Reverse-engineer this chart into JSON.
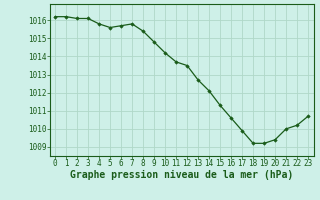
{
  "x": [
    0,
    1,
    2,
    3,
    4,
    5,
    6,
    7,
    8,
    9,
    10,
    11,
    12,
    13,
    14,
    15,
    16,
    17,
    18,
    19,
    20,
    21,
    22,
    23
  ],
  "y": [
    1016.2,
    1016.2,
    1016.1,
    1016.1,
    1015.8,
    1015.6,
    1015.7,
    1015.8,
    1015.4,
    1014.8,
    1014.2,
    1013.7,
    1013.5,
    1012.7,
    1012.1,
    1011.3,
    1010.6,
    1009.9,
    1009.2,
    1009.2,
    1009.4,
    1010.0,
    1010.2,
    1010.7
  ],
  "ylim": [
    1008.5,
    1016.9
  ],
  "yticks": [
    1009,
    1010,
    1011,
    1012,
    1013,
    1014,
    1015,
    1016
  ],
  "xticks": [
    0,
    1,
    2,
    3,
    4,
    5,
    6,
    7,
    8,
    9,
    10,
    11,
    12,
    13,
    14,
    15,
    16,
    17,
    18,
    19,
    20,
    21,
    22,
    23
  ],
  "xlabel": "Graphe pression niveau de la mer (hPa)",
  "line_color": "#1a5c1a",
  "marker_color": "#1a5c1a",
  "bg_color": "#cef0e8",
  "grid_color": "#b0d8c8",
  "text_color": "#1a5c1a",
  "tick_label_fontsize": 5.5,
  "xlabel_fontsize": 7.0
}
